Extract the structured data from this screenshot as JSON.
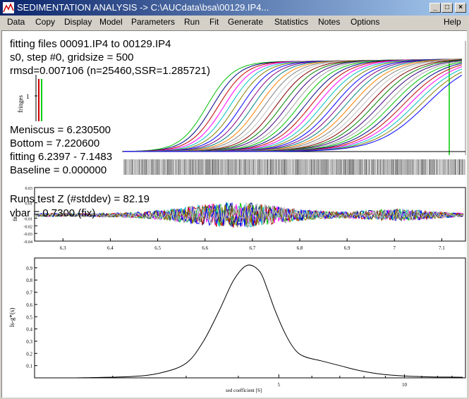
{
  "window": {
    "title": "SEDIMENTATION ANALYSIS -> C:\\AUCdata\\bsa\\00129.IP4...",
    "buttons": {
      "minimize": "_",
      "maximize": "□",
      "close": "×"
    }
  },
  "menu": {
    "items": [
      "Data",
      "Copy",
      "Display",
      "Model",
      "Parameters",
      "Run",
      "Fit",
      "Generate",
      "Statistics",
      "Notes",
      "Options"
    ],
    "help": "Help"
  },
  "info": {
    "line1": "fitting files 00091.IP4 to 00129.IP4",
    "line2": "s0, step #0, gridsize = 500",
    "line3": "rmsd=0.007106 (n=25460,SSR=1.285721)",
    "meniscus": "Meniscus = 6.230500",
    "bottom": "Bottom = 7.220600",
    "fitting": "fitting 6.2397 - 7.1483",
    "baseline": "Baseline = 0.000000",
    "runs_test": "Runs test Z (#stddev) = 82.19",
    "vbar": "vbar = 0.7300 (fix)"
  },
  "plot1": {
    "ylabel": "fringes",
    "ytick": "1"
  },
  "plot2": {
    "ylabel": "fit",
    "yticks": [
      "0.03",
      "0.01",
      "-0.01",
      "-0.02",
      "-0.03",
      "-0.04"
    ],
    "xticks": [
      "6.3",
      "6.4",
      "6.5",
      "6.6",
      "6.7",
      "6.8",
      "6.9",
      "7",
      "7.1"
    ]
  },
  "plot3": {
    "ylabel": "ls-g*(s)",
    "xlabel": "sed coefficient [S]",
    "yticks": [
      "0.9",
      "0.8",
      "0.7",
      "0.6",
      "0.5",
      "0.4",
      "0.3",
      "0.2",
      "0.1"
    ],
    "xticks": [
      "5",
      "10"
    ]
  },
  "chart_data": [
    {
      "type": "line",
      "description_of_axes": "radius vs fringes",
      "ylabel": "fringes",
      "x_range": [
        6.23,
        7.22
      ],
      "scan_count": 39,
      "meniscus": 6.2305,
      "bottom": 7.2206
    },
    {
      "type": "line",
      "ylabel": "fit",
      "xlim": [
        6.24,
        7.15
      ],
      "ylim": [
        -0.04,
        0.03
      ],
      "x_ticks": [
        6.3,
        6.4,
        6.5,
        6.6,
        6.7,
        6.8,
        6.9,
        7,
        7.1
      ],
      "y_ticks": [
        0.03,
        0.01,
        -0.01,
        -0.02,
        -0.03,
        -0.04
      ]
    },
    {
      "type": "line",
      "xlabel": "sed coefficient [S]",
      "ylabel": "ls-g*(s)",
      "x_scale": "log",
      "xlim": [
        1.3,
        14
      ],
      "ylim": [
        0,
        0.98
      ],
      "x_ticks": [
        5,
        10
      ],
      "y_ticks": [
        0.1,
        0.2,
        0.3,
        0.4,
        0.5,
        0.6,
        0.7,
        0.8,
        0.9
      ],
      "x": [
        1.6,
        2.2,
        2.6,
        3.0,
        3.3,
        3.6,
        3.9,
        4.2,
        4.5,
        4.7,
        4.9,
        5.2,
        5.5,
        5.8,
        6.3,
        7.0,
        7.8,
        8.8,
        10.0,
        11.5,
        13.8
      ],
      "y": [
        0.0,
        0.01,
        0.04,
        0.12,
        0.3,
        0.55,
        0.8,
        0.92,
        0.87,
        0.72,
        0.55,
        0.35,
        0.22,
        0.17,
        0.14,
        0.1,
        0.06,
        0.03,
        0.015,
        0.008,
        0.005
      ]
    }
  ]
}
